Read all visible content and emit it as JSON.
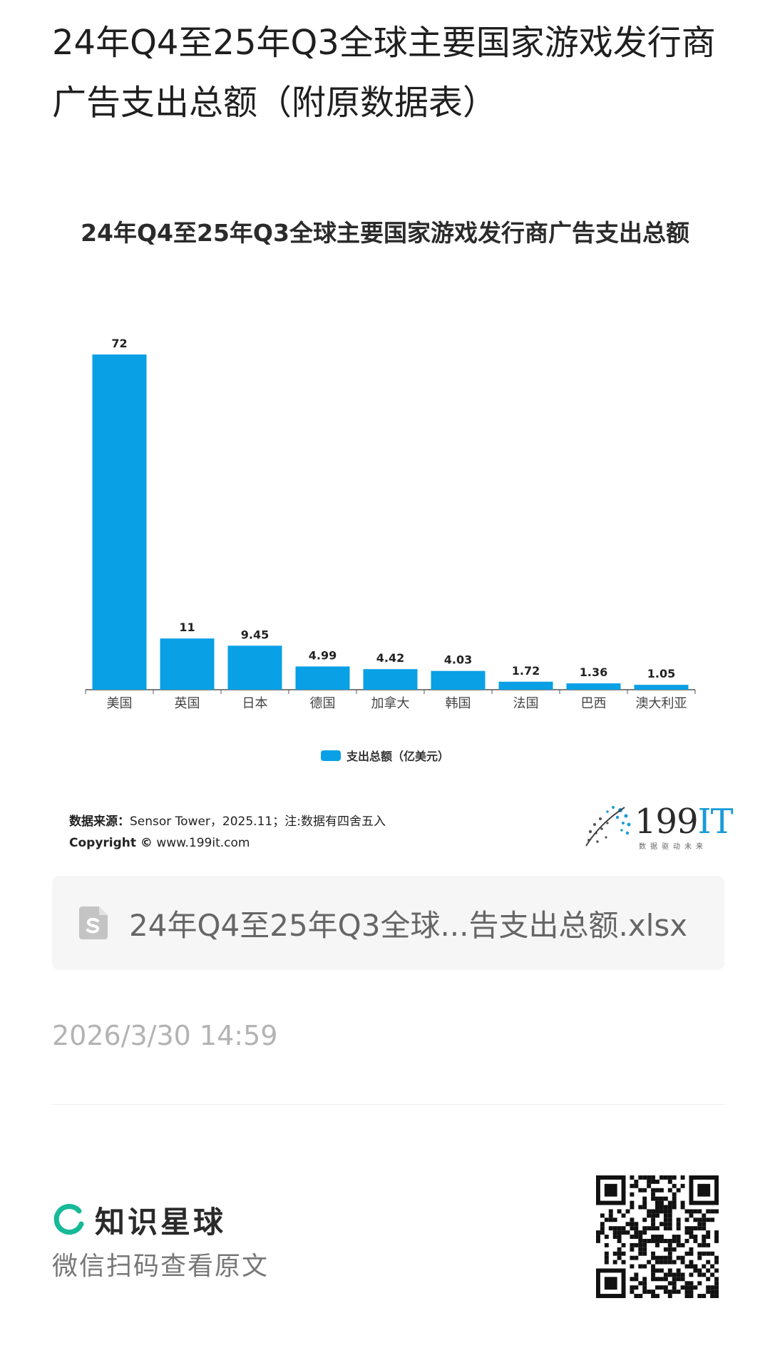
{
  "page": {
    "title": "24年Q4至25年Q3全球主要国家游戏发行商广告支出总额（附原数据表）"
  },
  "chart_data": {
    "type": "bar",
    "title": "24年Q4至25年Q3全球主要国家游戏发行商广告支出总额",
    "categories": [
      "美国",
      "英国",
      "日本",
      "德国",
      "加拿大",
      "韩国",
      "法国",
      "巴西",
      "澳大利亚"
    ],
    "series": [
      {
        "name": "支出总额（亿美元）",
        "values": [
          72,
          11,
          9.45,
          4.99,
          4.42,
          4.03,
          1.72,
          1.36,
          1.05
        ],
        "color": "#0aa0e6"
      }
    ],
    "value_labels": [
      "72",
      "11",
      "9.45",
      "4.99",
      "4.42",
      "4.03",
      "1.72",
      "1.36",
      "1.05"
    ],
    "xlabel": "",
    "ylabel": "",
    "ylim": [
      0,
      72
    ],
    "grid": false,
    "legend_position": "bottom"
  },
  "source": {
    "label": "数据来源：",
    "text": "Sensor Tower，2025.11；注:数据有四舍五入",
    "copyright_label": "Copyright ©",
    "copyright_text": "www.199it.com"
  },
  "brand": {
    "number": "199",
    "suffix": "IT",
    "tagline": "数据驱动未来",
    "accent": "#1a9bd7"
  },
  "file": {
    "icon": "spreadsheet-file-icon",
    "name": "24年Q4至25年Q3全球...告支出总额.xlsx"
  },
  "timestamp": "2026/3/30 14:59",
  "footer": {
    "app_name": "知识星球",
    "hint": "微信扫码查看原文",
    "accent": "#16b998",
    "qr_icon": "qr-code-icon"
  }
}
